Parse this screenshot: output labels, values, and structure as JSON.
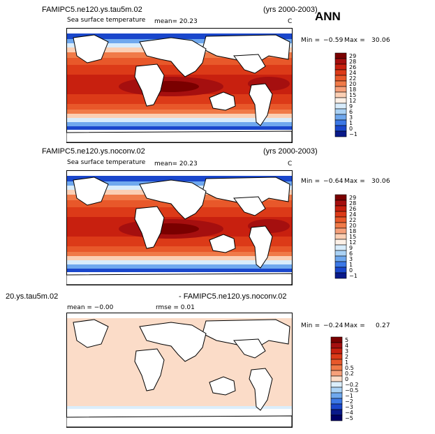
{
  "season": "ANN",
  "panels": [
    {
      "case_title": "FAMIPC5.ne120.ys.tau5m.02",
      "years": "(yrs 2000-2003)",
      "field_label": "Sea surface temperature",
      "mean_text": "mean=   20.23",
      "units": "C",
      "min_label": "Min =",
      "min_value": "−0.59",
      "max_label": "Max =",
      "max_value": "30.06",
      "colorbar": {
        "labels": [
          "29",
          "28",
          "26",
          "24",
          "22",
          "20",
          "18",
          "15",
          "12",
          "9",
          "6",
          "3",
          "1",
          "0",
          "−1"
        ],
        "colors": [
          "#7a0000",
          "#a50f0f",
          "#c8200f",
          "#dc3a18",
          "#e8582a",
          "#f07a48",
          "#f6a07a",
          "#fbcfb4",
          "#fdf0e6",
          "#d8ecfb",
          "#aad2f5",
          "#6fa8ee",
          "#3c78e6",
          "#1a47cc",
          "#0a1a8a"
        ]
      }
    },
    {
      "case_title": "FAMIPC5.ne120.ys.noconv.02",
      "years": "(yrs 2000-2003)",
      "field_label": "Sea surface temperature",
      "mean_text": "mean=   20.23",
      "units": "C",
      "min_label": "Min =",
      "min_value": "−0.64",
      "max_label": "Max =",
      "max_value": "30.06",
      "colorbar": {
        "labels": [
          "29",
          "28",
          "26",
          "24",
          "22",
          "20",
          "18",
          "15",
          "12",
          "9",
          "6",
          "3",
          "1",
          "0",
          "−1"
        ],
        "colors": [
          "#7a0000",
          "#a50f0f",
          "#c8200f",
          "#dc3a18",
          "#e8582a",
          "#f07a48",
          "#f6a07a",
          "#fbcfb4",
          "#fdf0e6",
          "#d8ecfb",
          "#aad2f5",
          "#6fa8ee",
          "#3c78e6",
          "#1a47cc",
          "#0a1a8a"
        ]
      }
    },
    {
      "case_title": "20.ys.tau5m.02",
      "years": "- FAMIPC5.ne120.ys.noconv.02",
      "mean_text": "mean =   −0.00",
      "rmse_text": "rmse =    0.01",
      "min_label": "Min =",
      "min_value": "−0.24",
      "max_label": "Max =",
      "max_value": "0.27",
      "colorbar": {
        "labels": [
          "5",
          "4",
          "3",
          "2",
          "1",
          "0.5",
          "0.2",
          "0",
          "−0.2",
          "−0.5",
          "−1",
          "−2",
          "−3",
          "−4",
          "−5"
        ],
        "colors": [
          "#7a0000",
          "#a50f0f",
          "#c8200f",
          "#dc3a18",
          "#e8582a",
          "#f07a48",
          "#f6a07a",
          "#fbdcc8",
          "#dbeefb",
          "#aad2f5",
          "#6fa8ee",
          "#3c78e6",
          "#1a47cc",
          "#0a1a8a",
          "#000066"
        ]
      }
    }
  ]
}
